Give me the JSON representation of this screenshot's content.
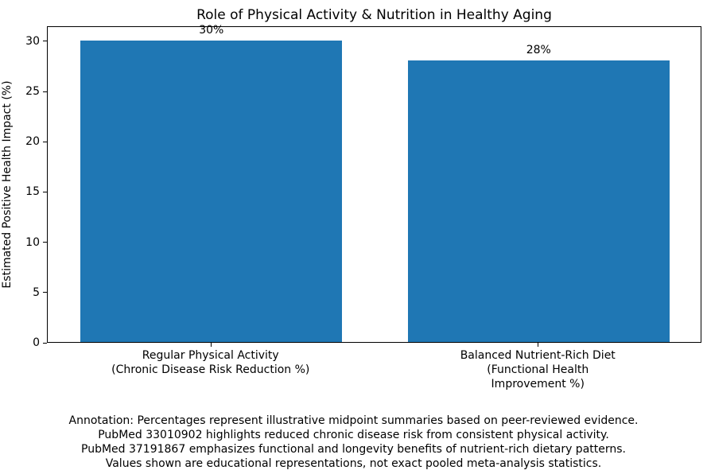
{
  "chart_data": {
    "type": "bar",
    "title": "Role of Physical Activity & Nutrition in Healthy Aging",
    "ylabel": "Estimated Positive Health Impact (%)",
    "xlabel": "",
    "categories": [
      "Regular Physical Activity\n(Chronic Disease Risk Reduction %)",
      "Balanced Nutrient-Rich Diet\n(Functional Health Improvement %)"
    ],
    "values": [
      30,
      28
    ],
    "bar_labels": [
      "30%",
      "28%"
    ],
    "yticks": [
      0,
      5,
      10,
      15,
      20,
      25,
      30
    ],
    "ylim": [
      0,
      31.5
    ],
    "bar_color": "#1f77b4",
    "grid": false,
    "legend": null
  },
  "annotation": {
    "lines": [
      "Annotation: Percentages represent illustrative midpoint summaries based on peer-reviewed evidence.",
      "PubMed 33010902 highlights reduced chronic disease risk from consistent physical activity.",
      "PubMed 37191867 emphasizes functional and longevity benefits of nutrient-rich dietary patterns.",
      "Values shown are educational representations, not exact pooled meta-analysis statistics."
    ]
  }
}
